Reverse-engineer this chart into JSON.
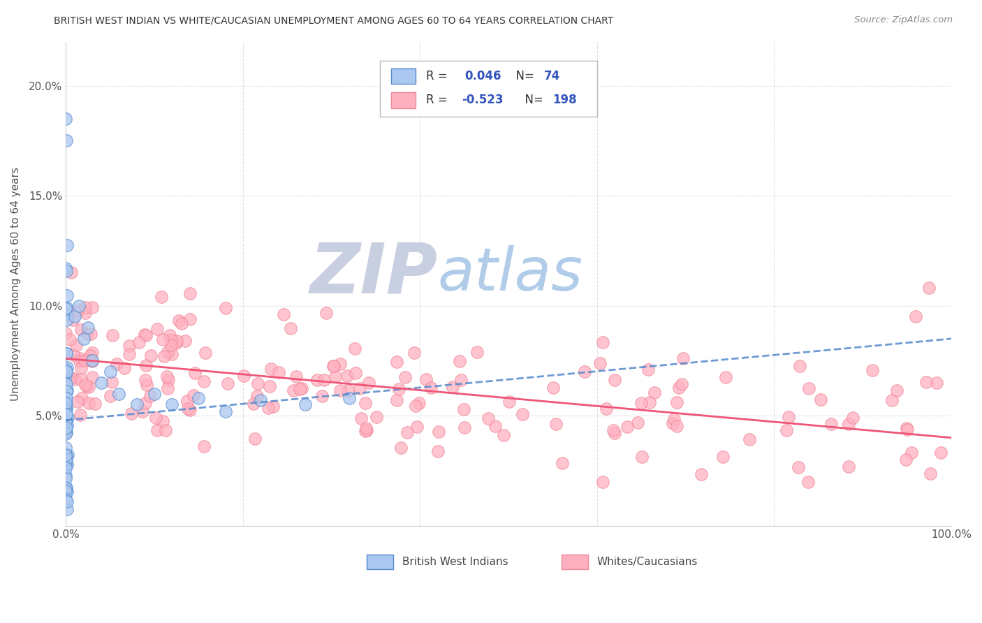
{
  "title": "BRITISH WEST INDIAN VS WHITE/CAUCASIAN UNEMPLOYMENT AMONG AGES 60 TO 64 YEARS CORRELATION CHART",
  "source": "Source: ZipAtlas.com",
  "ylabel": "Unemployment Among Ages 60 to 64 years",
  "xlim": [
    0,
    1.0
  ],
  "ylim": [
    0,
    0.22
  ],
  "xticks": [
    0.0,
    0.2,
    0.4,
    0.6,
    0.8,
    1.0
  ],
  "xticklabels": [
    "0.0%",
    "",
    "",
    "",
    "",
    "100.0%"
  ],
  "yticks": [
    0.0,
    0.05,
    0.1,
    0.15,
    0.2
  ],
  "yticklabels": [
    "",
    "5.0%",
    "10.0%",
    "15.0%",
    "20.0%"
  ],
  "scatter1_color": "#aac8f0",
  "scatter1_edge": "#5588cc",
  "scatter2_color": "#ffb0c0",
  "scatter2_edge": "#ee8898",
  "line1_color": "#5588cc",
  "line2_color": "#ee5577",
  "line1_style": "--",
  "line2_style": "-",
  "watermark_zip": "ZIP",
  "watermark_atlas": "atlas",
  "watermark_zip_color": "#c8cfe0",
  "watermark_atlas_color": "#b0cce8",
  "legend_color": "#3355bb",
  "background_color": "#ffffff",
  "grid_color": "#dddddd",
  "legend_label1": "British West Indians",
  "legend_label2": "Whites/Caucasians",
  "legend_r1": "R = ",
  "legend_v1": "0.046",
  "legend_n1_label": "N= ",
  "legend_n1_val": "74",
  "legend_r2": "R = ",
  "legend_v2": "-0.523",
  "legend_n2_label": "N= ",
  "legend_n2_val": "198",
  "bwi_line_start_x": 0.0,
  "bwi_line_start_y": 0.048,
  "bwi_line_end_x": 1.0,
  "bwi_line_end_y": 0.085,
  "white_line_start_x": 0.0,
  "white_line_start_y": 0.076,
  "white_line_end_x": 1.0,
  "white_line_end_y": 0.04
}
